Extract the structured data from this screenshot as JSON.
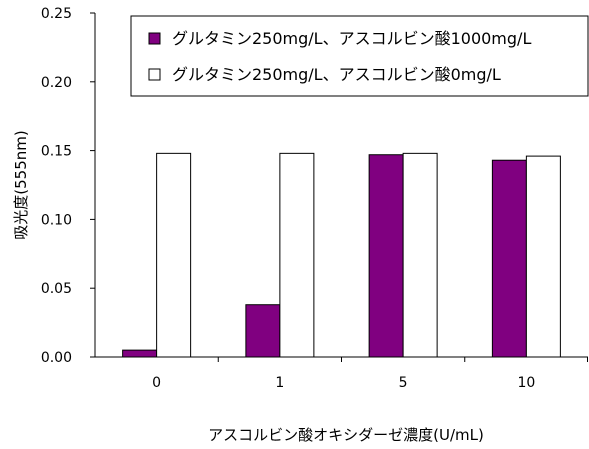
{
  "chart_data": {
    "type": "bar",
    "title": "",
    "xlabel": "アスコルビン酸オキシダーゼ濃度(U/mL)",
    "ylabel": "吸光度(555nm)",
    "categories": [
      "0",
      "1",
      "5",
      "10"
    ],
    "ylim": [
      0,
      0.25
    ],
    "yticks": [
      "0.00",
      "0.05",
      "0.10",
      "0.15",
      "0.20",
      "0.25"
    ],
    "grid": false,
    "legend_position": "top-right",
    "series": [
      {
        "name": "グルタミン250mg/L、アスコルビン酸1000mg/L",
        "color": "#800080",
        "values": [
          0.005,
          0.038,
          0.147,
          0.143
        ]
      },
      {
        "name": "グルタミン250mg/L、アスコルビン酸0mg/L",
        "color": "#ffffff",
        "values": [
          0.148,
          0.148,
          0.148,
          0.146
        ]
      }
    ]
  }
}
